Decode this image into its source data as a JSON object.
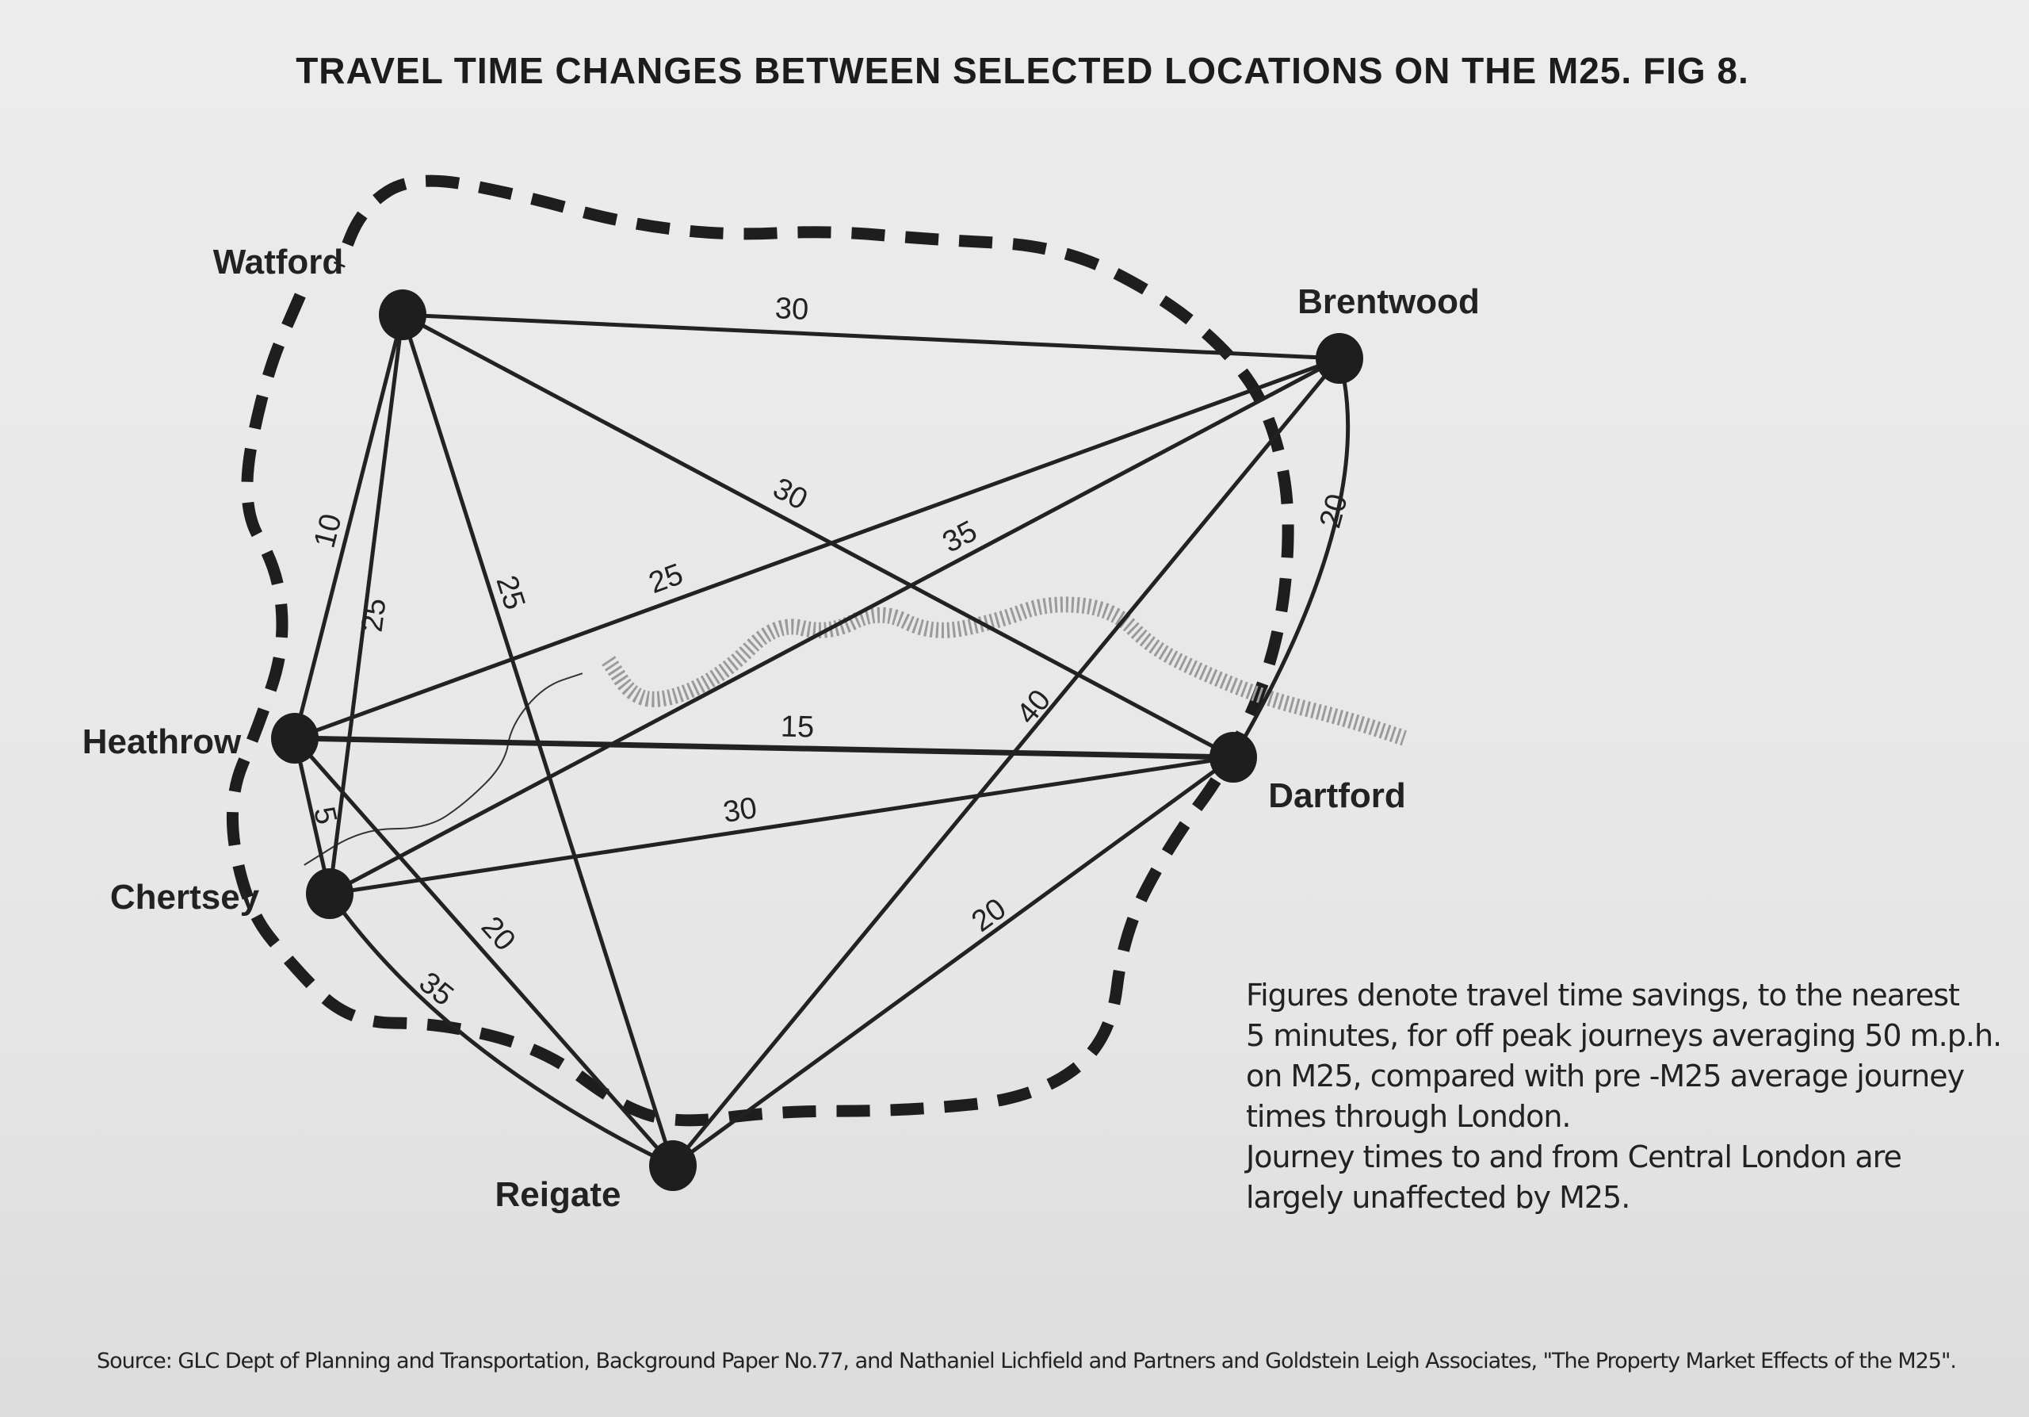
{
  "title": "TRAVEL TIME CHANGES BETWEEN SELECTED LOCATIONS ON THE M25.  FIG 8.",
  "locations": [
    "Watford",
    "Brentwood",
    "Heathrow",
    "Chertsey",
    "Dartford",
    "Reigate"
  ],
  "routes": [
    {
      "from": "Watford",
      "to": "Brentwood",
      "minutes": "30"
    },
    {
      "from": "Watford",
      "to": "Dartford",
      "minutes": "30"
    },
    {
      "from": "Watford",
      "to": "Heathrow",
      "minutes": "10"
    },
    {
      "from": "Watford",
      "to": "Chertsey",
      "minutes": "25"
    },
    {
      "from": "Watford",
      "to": "Reigate",
      "minutes": "25"
    },
    {
      "from": "Heathrow",
      "to": "Brentwood",
      "minutes": "25"
    },
    {
      "from": "Chertsey",
      "to": "Brentwood",
      "minutes": "35"
    },
    {
      "from": "Heathrow",
      "to": "Dartford",
      "minutes": "15"
    },
    {
      "from": "Chertsey",
      "to": "Dartford",
      "minutes": "30"
    },
    {
      "from": "Heathrow",
      "to": "Chertsey",
      "minutes": "5"
    },
    {
      "from": "Heathrow",
      "to": "Reigate",
      "minutes": "20"
    },
    {
      "from": "Chertsey",
      "to": "Reigate",
      "minutes": "35"
    },
    {
      "from": "Reigate",
      "to": "Brentwood",
      "minutes": "40"
    },
    {
      "from": "Reigate",
      "to": "Dartford",
      "minutes": "20"
    },
    {
      "from": "Brentwood",
      "to": "Dartford",
      "minutes": "20"
    }
  ],
  "notes": [
    "Figures denote  travel time savings, to the nearest",
    "5 minutes, for off peak journeys averaging 50 m.p.h.",
    "on M25, compared with pre -M25 average journey",
    "times through London.",
    "Journey times to and from Central London are",
    "largely unaffected by M25."
  ],
  "source": "Source: GLC Dept of Planning and Transportation, Background Paper No.77, and Nathaniel Lichfield and Partners and Goldstein Leigh Associates, \"The Property Market Effects of the M25\".",
  "colors": {
    "ink": "#222222",
    "paper": "#e9e9e9",
    "river": "#8a8a8a"
  }
}
